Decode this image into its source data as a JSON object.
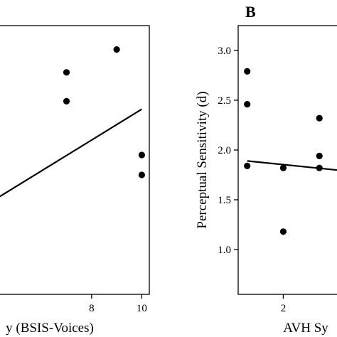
{
  "chart_data": [
    {
      "type": "scatter",
      "panel_label": "",
      "xlabel": "y (BSIS-Voices)",
      "ylabel": "",
      "xlim": [
        3.5,
        10.3
      ],
      "ylim": [
        0.55,
        3.25
      ],
      "x_ticks": [
        8,
        10
      ],
      "y_ticks": [],
      "grid": false,
      "points": [
        {
          "x": 7,
          "y": 2.78
        },
        {
          "x": 7,
          "y": 2.49
        },
        {
          "x": 9,
          "y": 3.01
        },
        {
          "x": 10,
          "y": 1.95
        },
        {
          "x": 10,
          "y": 1.75
        }
      ],
      "fit_line": {
        "x": [
          4.0,
          10.0
        ],
        "y": [
          1.48,
          2.41
        ]
      }
    },
    {
      "type": "scatter",
      "panel_label": "B",
      "xlabel": "AVH Sy",
      "ylabel": "Perceptual Sensitivity (d)",
      "xlim": [
        0.75,
        4.0
      ],
      "ylim": [
        0.55,
        3.25
      ],
      "x_ticks": [
        2
      ],
      "y_ticks": [
        1.0,
        1.5,
        2.0,
        2.5,
        3.0
      ],
      "grid": false,
      "points": [
        {
          "x": 1,
          "y": 2.79
        },
        {
          "x": 1,
          "y": 2.46
        },
        {
          "x": 1,
          "y": 1.84
        },
        {
          "x": 2,
          "y": 1.82
        },
        {
          "x": 2,
          "y": 1.18
        },
        {
          "x": 3,
          "y": 2.32
        },
        {
          "x": 3,
          "y": 1.94
        },
        {
          "x": 3,
          "y": 1.82
        }
      ],
      "fit_line": {
        "x": [
          1.0,
          4.0
        ],
        "y": [
          1.89,
          1.78
        ]
      }
    }
  ]
}
